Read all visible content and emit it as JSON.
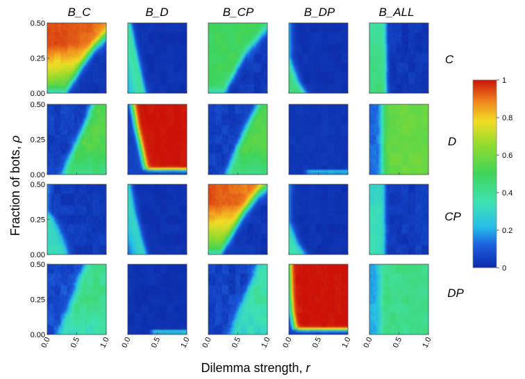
{
  "chart_data": {
    "type": "heatmap",
    "description_rows_cols": "5 bot strategies (columns) x 4 focal strategies (rows)",
    "column_titles": [
      "B_C",
      "B_D",
      "B_CP",
      "B_DP",
      "B_ALL"
    ],
    "row_labels": [
      "C",
      "D",
      "CP",
      "DP"
    ],
    "xlabel_main": "Dilemma strength, ",
    "xlabel_var": "r",
    "ylabel_main": "Fraction of bots, ",
    "ylabel_var": "ρ",
    "x_range": [
      0,
      1
    ],
    "y_range": [
      0,
      0.5
    ],
    "x_tick_values": [
      0,
      0.5,
      1
    ],
    "x_tick_labels": [
      "0.0",
      "0.5",
      "1.0"
    ],
    "y_tick_values": [
      0,
      0.25,
      0.5
    ],
    "y_tick_labels": [
      "0.00",
      "0.25",
      "0.50"
    ],
    "colorbar": {
      "range": [
        0,
        1
      ],
      "tick_values": [
        0,
        0.2,
        0.4,
        0.6,
        0.8,
        1
      ],
      "tick_labels": [
        "0",
        "0.2",
        "0.4",
        "0.6",
        "0.8",
        "1"
      ],
      "colormap": [
        {
          "v": 0.0,
          "c": "#0b2aa8"
        },
        {
          "v": 0.12,
          "c": "#1c5fe0"
        },
        {
          "v": 0.22,
          "c": "#27bfe6"
        },
        {
          "v": 0.35,
          "c": "#3fe2b2"
        },
        {
          "v": 0.5,
          "c": "#3fd45a"
        },
        {
          "v": 0.65,
          "c": "#8fdb2e"
        },
        {
          "v": 0.78,
          "c": "#f2dd25"
        },
        {
          "v": 0.88,
          "c": "#f08a1f"
        },
        {
          "v": 1.0,
          "c": "#cc1208"
        }
      ]
    },
    "panels": {
      "C": {
        "B_C": {
          "pattern": "boundary",
          "boundary": [
            [
              0.3,
              0
            ],
            [
              0.45,
              0.1
            ],
            [
              0.62,
              0.22
            ],
            [
              0.8,
              0.33
            ],
            [
              1.0,
              0.41
            ]
          ],
          "high": 0.9,
          "low": 0.03,
          "gradient": "ρ-dependent",
          "noise": 0.05
        },
        "B_D": {
          "pattern": "wedge",
          "wedge": [
            [
              0.3,
              0
            ],
            [
              0.22,
              0.15
            ],
            [
              0.12,
              0.35
            ],
            [
              0.05,
              0.5
            ]
          ],
          "high": 0.45,
          "low": 0.02
        },
        "B_CP": {
          "pattern": "boundary",
          "boundary": [
            [
              0.25,
              0
            ],
            [
              0.45,
              0.15
            ],
            [
              0.65,
              0.3
            ],
            [
              0.9,
              0.42
            ],
            [
              1.0,
              0.46
            ]
          ],
          "high": 0.5,
          "low": 0.04,
          "noise": 0.07
        },
        "B_DP": {
          "pattern": "corner",
          "corner": [
            [
              0.28,
              0
            ],
            [
              0.15,
              0.08
            ],
            [
              0.05,
              0.2
            ],
            [
              0,
              0.26
            ]
          ],
          "high": 0.45,
          "low": 0.02
        },
        "B_ALL": {
          "pattern": "vertical",
          "vline": 0.28,
          "high": 0.45,
          "low": 0.03,
          "noise": 0.06
        }
      },
      "D": {
        "B_C": {
          "pattern": "invboundary",
          "boundary": [
            [
              0.25,
              0
            ],
            [
              0.45,
              0.18
            ],
            [
              0.62,
              0.34
            ],
            [
              0.78,
              0.5
            ]
          ],
          "high": 0.55,
          "low": 0.05,
          "noise": 0.08
        },
        "B_D": {
          "pattern": "redblock",
          "edge": [
            [
              0.3,
              0.04
            ],
            [
              0.22,
              0.2
            ],
            [
              0.14,
              0.35
            ],
            [
              0.08,
              0.5
            ]
          ],
          "high": 1.0,
          "low": 0.05
        },
        "B_CP": {
          "pattern": "invboundary",
          "boundary": [
            [
              0.3,
              0
            ],
            [
              0.5,
              0.2
            ],
            [
              0.68,
              0.36
            ],
            [
              0.85,
              0.5
            ]
          ],
          "high": 0.55,
          "low": 0.05,
          "noise": 0.08
        },
        "B_DP": {
          "pattern": "bottomband",
          "band_start": 0.3,
          "high": 0.3,
          "low": 0.03
        },
        "B_ALL": {
          "pattern": "invvertical",
          "vline": 0.22,
          "high": 0.58,
          "low": 0.12,
          "noise": 0.07
        }
      },
      "CP": {
        "B_C": {
          "pattern": "corner",
          "corner": [
            [
              0.35,
              0
            ],
            [
              0.25,
              0.12
            ],
            [
              0.12,
              0.25
            ],
            [
              0,
              0.32
            ]
          ],
          "high": 0.32,
          "low": 0.04,
          "noise": 0.06
        },
        "B_D": {
          "pattern": "wedge",
          "wedge": [
            [
              0.32,
              0
            ],
            [
              0.22,
              0.15
            ],
            [
              0.12,
              0.32
            ],
            [
              0.05,
              0.5
            ]
          ],
          "high": 0.35,
          "low": 0.02
        },
        "B_CP": {
          "pattern": "boundary",
          "boundary": [
            [
              0.2,
              0
            ],
            [
              0.4,
              0.15
            ],
            [
              0.6,
              0.3
            ],
            [
              0.85,
              0.44
            ],
            [
              1.0,
              0.49
            ]
          ],
          "high": 0.88,
          "low": 0.03,
          "gradient": "ρ-dependent",
          "noise": 0.05
        },
        "B_DP": {
          "pattern": "corner",
          "corner": [
            [
              0.28,
              0
            ],
            [
              0.15,
              0.08
            ],
            [
              0.05,
              0.18
            ],
            [
              0,
              0.24
            ]
          ],
          "high": 0.35,
          "low": 0.02
        },
        "B_ALL": {
          "pattern": "vertical",
          "vline": 0.26,
          "high": 0.35,
          "low": 0.04,
          "noise": 0.06
        }
      },
      "DP": {
        "B_C": {
          "pattern": "invboundary",
          "boundary": [
            [
              0.2,
              0
            ],
            [
              0.38,
              0.2
            ],
            [
              0.55,
              0.4
            ],
            [
              0.65,
              0.5
            ]
          ],
          "high": 0.42,
          "low": 0.08,
          "noise": 0.1
        },
        "B_D": {
          "pattern": "bottomband",
          "band_start": 0.4,
          "high": 0.35,
          "low": 0.02
        },
        "B_CP": {
          "pattern": "invboundary",
          "boundary": [
            [
              0.35,
              0
            ],
            [
              0.55,
              0.2
            ],
            [
              0.75,
              0.4
            ],
            [
              0.85,
              0.5
            ]
          ],
          "high": 0.38,
          "low": 0.06,
          "noise": 0.1
        },
        "B_DP": {
          "pattern": "redblock",
          "edge": [
            [
              0.1,
              0.04
            ],
            [
              0.05,
              0.15
            ],
            [
              0.02,
              0.3
            ],
            [
              0.01,
              0.5
            ]
          ],
          "high": 1.0,
          "low": 0.05
        },
        "B_ALL": {
          "pattern": "invvertical",
          "vline": 0.18,
          "high": 0.42,
          "low": 0.2,
          "noise": 0.08
        }
      }
    }
  }
}
